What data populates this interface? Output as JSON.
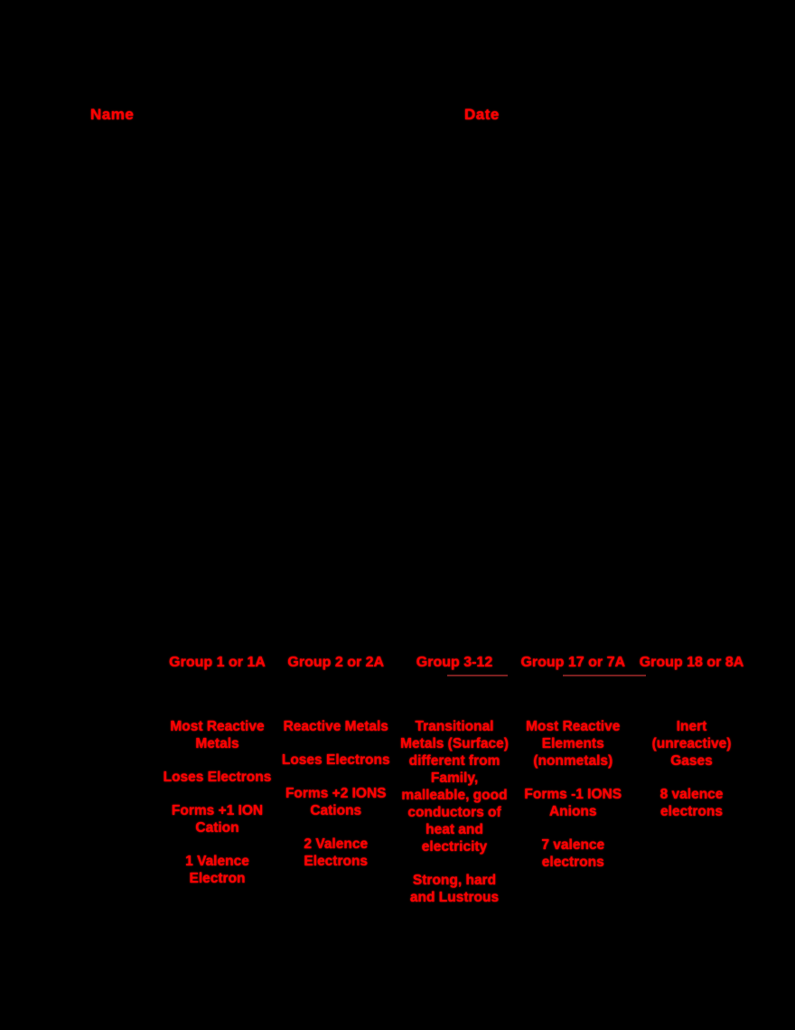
{
  "header": {
    "name_label": "Name",
    "date_label": "Date"
  },
  "accent_color": "#ff0000",
  "background_color": "#000000",
  "groups": [
    {
      "title": "Group 1 or 1A",
      "facts": [
        "Most Reactive Metals",
        "Loses Electrons",
        "Forms +1 ION Cation",
        "1 Valence Electron"
      ]
    },
    {
      "title": "Group 2 or 2A",
      "facts": [
        "Reactive Metals",
        "Loses Electrons",
        "Forms +2 IONS Cations",
        "2 Valence Electrons"
      ]
    },
    {
      "title": "Group 3-12",
      "facts": [
        "Transitional Metals (Surface) different from Family, malleable, good conductors of heat and electricity",
        "Strong, hard and Lustrous"
      ]
    },
    {
      "title": "Group 17 or 7A",
      "facts": [
        "Most Reactive Elements (nonmetals)",
        "Forms -1 IONS Anions",
        "7 valence electrons"
      ]
    },
    {
      "title": "Group 18 or 8A",
      "facts": [
        "Inert (unreactive) Gases",
        "8 valence electrons"
      ]
    }
  ]
}
